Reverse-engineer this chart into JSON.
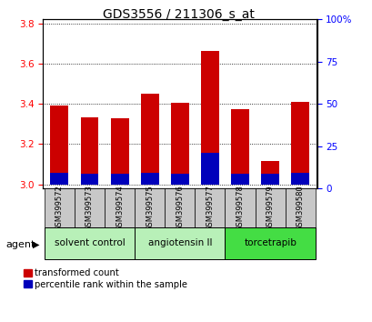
{
  "title": "GDS3556 / 211306_s_at",
  "samples": [
    "GSM399572",
    "GSM399573",
    "GSM399574",
    "GSM399575",
    "GSM399576",
    "GSM399577",
    "GSM399578",
    "GSM399579",
    "GSM399580"
  ],
  "red_values": [
    3.39,
    3.335,
    3.33,
    3.45,
    3.405,
    3.665,
    3.375,
    3.115,
    3.41
  ],
  "blue_values": [
    0.055,
    0.052,
    0.052,
    0.058,
    0.052,
    0.155,
    0.052,
    0.052,
    0.058
  ],
  "baseline": 3.0,
  "ylim_left": [
    2.98,
    3.82
  ],
  "ylim_right": [
    0,
    100
  ],
  "yticks_left": [
    3.0,
    3.2,
    3.4,
    3.6,
    3.8
  ],
  "yticks_right": [
    0,
    25,
    50,
    75,
    100
  ],
  "groups": [
    {
      "label": "solvent control",
      "start": 0,
      "end": 3,
      "color": "#b8f0b8"
    },
    {
      "label": "angiotensin II",
      "start": 3,
      "end": 6,
      "color": "#b8f0b8"
    },
    {
      "label": "torcetrapib",
      "start": 6,
      "end": 9,
      "color": "#44dd44"
    }
  ],
  "agent_label": "agent",
  "legend_red": "transformed count",
  "legend_blue": "percentile rank within the sample",
  "bar_color_red": "#CC0000",
  "bar_color_blue": "#0000BB",
  "bar_width": 0.6,
  "title_fontsize": 10,
  "tick_fontsize": 7.5,
  "sample_box_color": "#C8C8C8",
  "group_border_color": "#000000"
}
